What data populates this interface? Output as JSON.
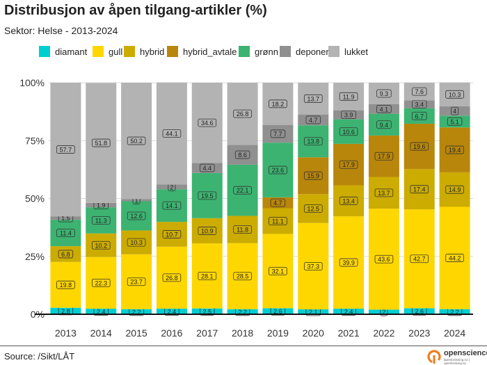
{
  "title": "Distribusjon av åpen tilgang-artikler (%)",
  "subtitle": "Sektor: Helse - 2013-2024",
  "source": "Source: /Sikt/LÅT",
  "logo": {
    "name": "opensciencе.no",
    "tagline": "åpenforskning.no | openforsking.no"
  },
  "chart_data": {
    "type": "bar",
    "stacked": true,
    "title": "Distribusjon av åpen tilgang-artikler (%)",
    "subtitle": "Sektor: Helse - 2013-2024",
    "xlabel": "",
    "ylabel": "",
    "ylim": [
      0,
      100
    ],
    "yticks": [
      "0%",
      "25%",
      "50%",
      "75%",
      "100%"
    ],
    "ytick_values": [
      0,
      25,
      50,
      75,
      100
    ],
    "grid": true,
    "legend_position": "top",
    "categories": [
      "2013",
      "2014",
      "2015",
      "2016",
      "2017",
      "2018",
      "2019",
      "2020",
      "2021",
      "2022",
      "2023",
      "2024"
    ],
    "series": [
      {
        "name": "diamant",
        "color": "#00CED1",
        "values": [
          2.8,
          2.4,
          2.2,
          2.4,
          2.5,
          2.2,
          2.6,
          2.1,
          2.4,
          2,
          2.6,
          2.2
        ]
      },
      {
        "name": "gull",
        "color": "#FFD700",
        "values": [
          19.8,
          22.3,
          23.7,
          26.8,
          28.1,
          28.5,
          32.1,
          37.3,
          39.9,
          43.6,
          42.7,
          44.2
        ]
      },
      {
        "name": "hybrid",
        "color": "#CCAC00",
        "values": [
          6.8,
          10.2,
          10.3,
          10.7,
          10.9,
          11.8,
          11.1,
          12.5,
          13.4,
          13.7,
          17.4,
          14.9
        ]
      },
      {
        "name": "hybrid_avtale",
        "color": "#B8860B",
        "values": [
          0,
          0,
          0,
          0,
          0,
          0,
          4.7,
          15.9,
          17.9,
          17.9,
          19.6,
          19.4
        ]
      },
      {
        "name": "grønn",
        "color": "#3CB371",
        "values": [
          11.4,
          11.3,
          12.6,
          14.1,
          19.5,
          22.1,
          23.6,
          13.8,
          10.6,
          9.4,
          6.7,
          5.1
        ]
      },
      {
        "name": "deponert",
        "color": "#909090",
        "values": [
          1.5,
          1.9,
          1,
          2,
          4.4,
          8.6,
          7.7,
          4.7,
          3.9,
          4.1,
          3.4,
          4
        ]
      },
      {
        "name": "lukket",
        "color": "#B3B3B3",
        "values": [
          57.7,
          51.8,
          50.2,
          44.1,
          34.6,
          26.8,
          18.2,
          13.7,
          11.9,
          9.3,
          7.6,
          10.3
        ]
      }
    ]
  }
}
